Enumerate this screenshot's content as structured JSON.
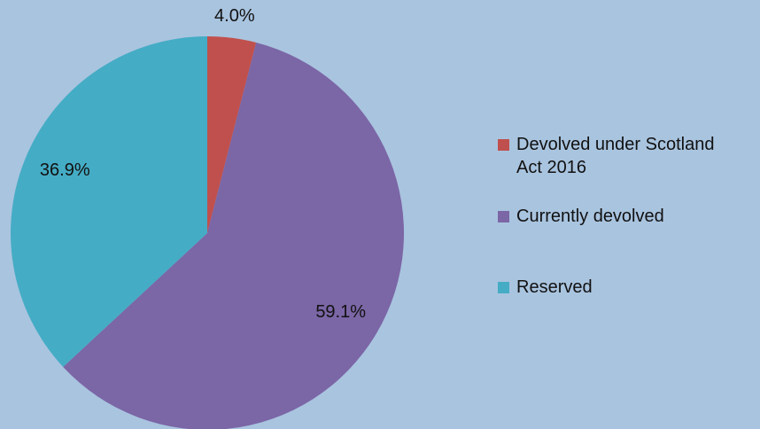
{
  "chart_data": {
    "type": "pie",
    "categories": [
      "Devolved under Scotland Act 2016",
      "Currently devolved",
      "Reserved"
    ],
    "values": [
      4.0,
      59.1,
      36.9
    ],
    "value_labels": [
      "4.0%",
      "59.1%",
      "36.9%"
    ],
    "colors": [
      "#c0504d",
      "#7b66a6",
      "#45acc5"
    ],
    "legend": "right"
  }
}
